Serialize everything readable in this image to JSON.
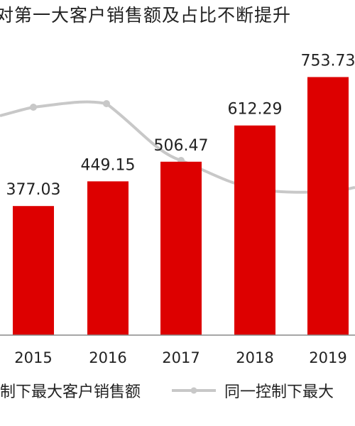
{
  "chart_data": {
    "type": "bar",
    "title": "对第一大客户销售额及占比不断提升",
    "categories": [
      "2015",
      "2016",
      "2017",
      "2018",
      "2019"
    ],
    "series": [
      {
        "name": "制下最大客户销售额",
        "type": "bar",
        "values": [
          377.03,
          449.15,
          506.47,
          612.29,
          753.73
        ],
        "color": "#dd0000"
      },
      {
        "name": "同一控制下最大",
        "type": "line",
        "color": "#c8c8c8"
      }
    ],
    "data_labels": [
      "377.03",
      "449.15",
      "506.47",
      "612.29",
      "753.73"
    ],
    "ylim": [
      0,
      900
    ],
    "grid": false,
    "legend": "bottom"
  }
}
